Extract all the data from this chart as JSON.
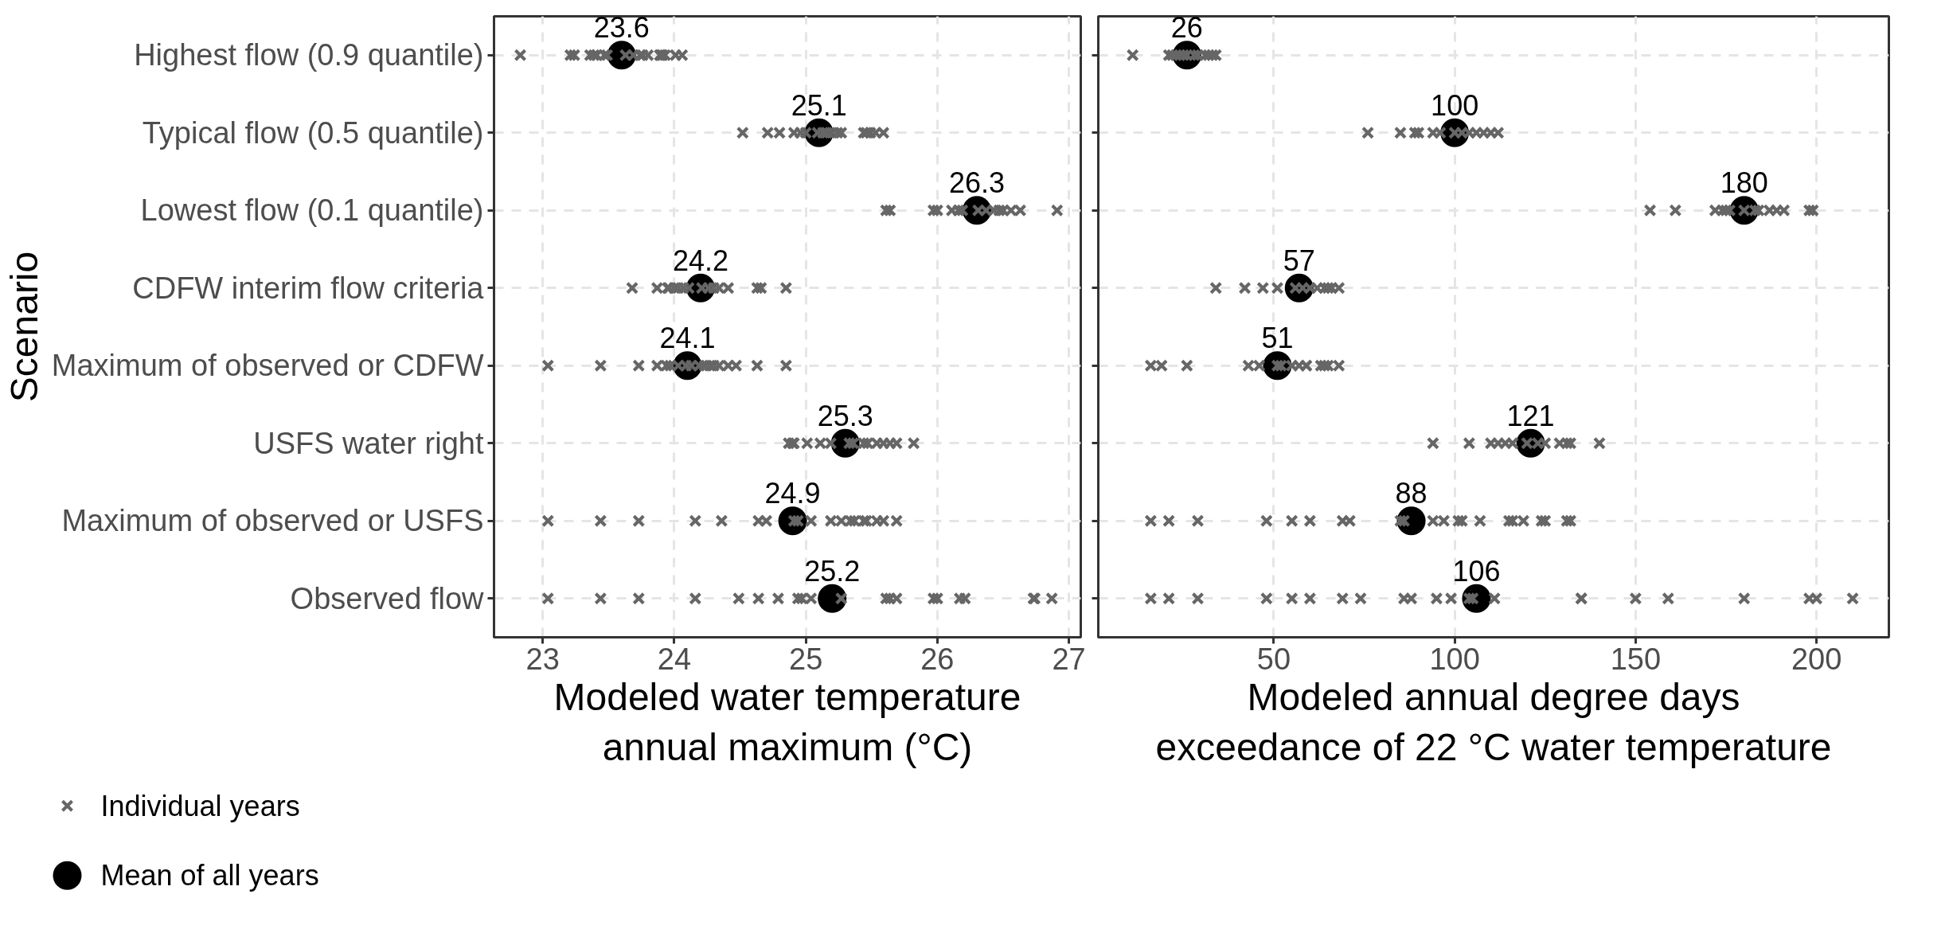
{
  "chart_data": [
    {
      "type": "scatter",
      "orientation": "horizontal",
      "xlabel": "Modeled water temperature\nannual maximum (°C)",
      "ylabel": "Scenario",
      "categories": [
        "Highest flow (0.9 quantile)",
        "Typical flow (0.5 quantile)",
        "Lowest flow (0.1 quantile)",
        "CDFW interim flow criteria",
        "Maximum of observed or CDFW",
        "USFS water right",
        "Maximum of observed or USFS",
        "Observed flow"
      ],
      "xlim": [
        22.63,
        27.09
      ],
      "xticks": [
        23,
        24,
        25,
        26,
        27
      ],
      "grid": true,
      "legend": "bottom left",
      "series": [
        {
          "name": "Mean of all years",
          "color": "#000000",
          "marker": "circle",
          "values": [
            23.6,
            25.1,
            26.3,
            24.2,
            24.1,
            25.3,
            24.9,
            25.2
          ],
          "value_labels": [
            "23.6",
            "25.1",
            "26.3",
            "24.2",
            "24.1",
            "25.3",
            "24.9",
            "25.2"
          ]
        },
        {
          "name": "Individual years",
          "color": "#666666",
          "marker": "cross",
          "x": [
            "Highest flow (0.9 quantile)",
            "Highest flow (0.9 quantile)",
            "Highest flow (0.9 quantile)",
            "Highest flow (0.9 quantile)",
            "Highest flow (0.9 quantile)",
            "Highest flow (0.9 quantile)",
            "Highest flow (0.9 quantile)",
            "Highest flow (0.9 quantile)",
            "Highest flow (0.9 quantile)",
            "Highest flow (0.9 quantile)",
            "Highest flow (0.9 quantile)",
            "Highest flow (0.9 quantile)",
            "Highest flow (0.9 quantile)",
            "Highest flow (0.9 quantile)",
            "Highest flow (0.9 quantile)",
            "Highest flow (0.9 quantile)",
            "Highest flow (0.9 quantile)",
            "Highest flow (0.9 quantile)",
            "Highest flow (0.9 quantile)",
            "Typical flow (0.5 quantile)",
            "Typical flow (0.5 quantile)",
            "Typical flow (0.5 quantile)",
            "Typical flow (0.5 quantile)",
            "Typical flow (0.5 quantile)",
            "Typical flow (0.5 quantile)",
            "Typical flow (0.5 quantile)",
            "Typical flow (0.5 quantile)",
            "Typical flow (0.5 quantile)",
            "Typical flow (0.5 quantile)",
            "Typical flow (0.5 quantile)",
            "Typical flow (0.5 quantile)",
            "Typical flow (0.5 quantile)",
            "Typical flow (0.5 quantile)",
            "Typical flow (0.5 quantile)",
            "Typical flow (0.5 quantile)",
            "Typical flow (0.5 quantile)",
            "Lowest flow (0.1 quantile)",
            "Lowest flow (0.1 quantile)",
            "Lowest flow (0.1 quantile)",
            "Lowest flow (0.1 quantile)",
            "Lowest flow (0.1 quantile)",
            "Lowest flow (0.1 quantile)",
            "Lowest flow (0.1 quantile)",
            "Lowest flow (0.1 quantile)",
            "Lowest flow (0.1 quantile)",
            "Lowest flow (0.1 quantile)",
            "Lowest flow (0.1 quantile)",
            "Lowest flow (0.1 quantile)",
            "Lowest flow (0.1 quantile)",
            "Lowest flow (0.1 quantile)",
            "Lowest flow (0.1 quantile)",
            "CDFW interim flow criteria",
            "CDFW interim flow criteria",
            "CDFW interim flow criteria",
            "CDFW interim flow criteria",
            "CDFW interim flow criteria",
            "CDFW interim flow criteria",
            "CDFW interim flow criteria",
            "CDFW interim flow criteria",
            "CDFW interim flow criteria",
            "CDFW interim flow criteria",
            "CDFW interim flow criteria",
            "CDFW interim flow criteria",
            "CDFW interim flow criteria",
            "CDFW interim flow criteria",
            "CDFW interim flow criteria",
            "CDFW interim flow criteria",
            "Maximum of observed or CDFW",
            "Maximum of observed or CDFW",
            "Maximum of observed or CDFW",
            "Maximum of observed or CDFW",
            "Maximum of observed or CDFW",
            "Maximum of observed or CDFW",
            "Maximum of observed or CDFW",
            "Maximum of observed or CDFW",
            "Maximum of observed or CDFW",
            "Maximum of observed or CDFW",
            "Maximum of observed or CDFW",
            "Maximum of observed or CDFW",
            "Maximum of observed or CDFW",
            "Maximum of observed or CDFW",
            "Maximum of observed or CDFW",
            "Maximum of observed or CDFW",
            "Maximum of observed or CDFW",
            "Maximum of observed or CDFW",
            "USFS water right",
            "USFS water right",
            "USFS water right",
            "USFS water right",
            "USFS water right",
            "USFS water right",
            "USFS water right",
            "USFS water right",
            "USFS water right",
            "USFS water right",
            "USFS water right",
            "USFS water right",
            "USFS water right",
            "USFS water right",
            "USFS water right",
            "Maximum of observed or USFS",
            "Maximum of observed or USFS",
            "Maximum of observed or USFS",
            "Maximum of observed or USFS",
            "Maximum of observed or USFS",
            "Maximum of observed or USFS",
            "Maximum of observed or USFS",
            "Maximum of observed or USFS",
            "Maximum of observed or USFS",
            "Maximum of observed or USFS",
            "Maximum of observed or USFS",
            "Maximum of observed or USFS",
            "Maximum of observed or USFS",
            "Maximum of observed or USFS",
            "Maximum of observed or USFS",
            "Maximum of observed or USFS",
            "Maximum of observed or USFS",
            "Maximum of observed or USFS",
            "Maximum of observed or USFS",
            "Observed flow",
            "Observed flow",
            "Observed flow",
            "Observed flow",
            "Observed flow",
            "Observed flow",
            "Observed flow",
            "Observed flow",
            "Observed flow",
            "Observed flow",
            "Observed flow",
            "Observed flow",
            "Observed flow",
            "Observed flow",
            "Observed flow",
            "Observed flow",
            "Observed flow",
            "Observed flow",
            "Observed flow",
            "Observed flow",
            "Observed flow"
          ],
          "values": [
            22.83,
            23.21,
            23.24,
            23.36,
            23.39,
            23.41,
            23.47,
            23.49,
            23.63,
            23.69,
            23.74,
            23.76,
            23.8,
            23.89,
            23.9,
            23.91,
            23.93,
            24.01,
            24.06,
            24.52,
            24.71,
            24.8,
            24.91,
            24.96,
            25.0,
            25.09,
            25.13,
            25.16,
            25.2,
            25.24,
            25.27,
            25.44,
            25.46,
            25.49,
            25.53,
            25.59,
            25.61,
            25.64,
            25.97,
            26.0,
            26.11,
            26.16,
            26.19,
            26.31,
            26.37,
            26.43,
            26.47,
            26.5,
            26.56,
            26.63,
            26.91,
            23.68,
            23.87,
            23.95,
            23.96,
            24.0,
            24.03,
            24.07,
            24.11,
            24.21,
            24.26,
            24.3,
            24.34,
            24.41,
            24.63,
            24.66,
            24.85,
            23.04,
            23.44,
            23.73,
            23.87,
            23.94,
            23.97,
            24.03,
            24.09,
            24.13,
            24.19,
            24.23,
            24.27,
            24.3,
            24.34,
            24.41,
            24.47,
            24.63,
            24.85,
            24.87,
            24.9,
            24.91,
            25.01,
            25.11,
            25.19,
            25.33,
            25.36,
            25.44,
            25.47,
            25.54,
            25.59,
            25.64,
            25.69,
            25.82,
            23.04,
            23.44,
            23.73,
            24.16,
            24.36,
            24.64,
            24.7,
            24.91,
            24.94,
            25.04,
            25.19,
            25.27,
            25.34,
            25.37,
            25.44,
            25.46,
            25.54,
            25.59,
            25.69,
            23.04,
            23.44,
            23.73,
            24.16,
            24.49,
            24.64,
            24.79,
            24.94,
            24.97,
            25.04,
            25.27,
            25.61,
            25.64,
            25.69,
            25.97,
            26.0,
            26.17,
            26.21,
            26.73,
            26.74,
            26.87
          ]
        }
      ]
    },
    {
      "type": "scatter",
      "orientation": "horizontal",
      "xlabel": "Modeled annual degree days\nexceedance of 22 °C water temperature",
      "categories": [
        "Highest flow (0.9 quantile)",
        "Typical flow (0.5 quantile)",
        "Lowest flow (0.1 quantile)",
        "CDFW interim flow criteria",
        "Maximum of observed or CDFW",
        "USFS water right",
        "Maximum of observed or USFS",
        "Observed flow"
      ],
      "xlim": [
        1.5,
        220
      ],
      "xticks": [
        50,
        100,
        150,
        200
      ],
      "grid": true,
      "tick_labels": "x",
      "series": [
        {
          "color": "#000000",
          "marker": "circle",
          "values": [
            26,
            100,
            180,
            57,
            51,
            121,
            88,
            106
          ],
          "value_labels": [
            "26",
            "100",
            "180",
            "57",
            "51",
            "121",
            "88",
            "106"
          ]
        },
        {
          "color": "#666666",
          "marker": "cross",
          "x": [
            "Highest flow (0.9 quantile)",
            "Highest flow (0.9 quantile)",
            "Highest flow (0.9 quantile)",
            "Highest flow (0.9 quantile)",
            "Highest flow (0.9 quantile)",
            "Highest flow (0.9 quantile)",
            "Highest flow (0.9 quantile)",
            "Highest flow (0.9 quantile)",
            "Highest flow (0.9 quantile)",
            "Highest flow (0.9 quantile)",
            "Highest flow (0.9 quantile)",
            "Highest flow (0.9 quantile)",
            "Highest flow (0.9 quantile)",
            "Typical flow (0.5 quantile)",
            "Typical flow (0.5 quantile)",
            "Typical flow (0.5 quantile)",
            "Typical flow (0.5 quantile)",
            "Typical flow (0.5 quantile)",
            "Typical flow (0.5 quantile)",
            "Typical flow (0.5 quantile)",
            "Typical flow (0.5 quantile)",
            "Typical flow (0.5 quantile)",
            "Typical flow (0.5 quantile)",
            "Typical flow (0.5 quantile)",
            "Typical flow (0.5 quantile)",
            "Typical flow (0.5 quantile)",
            "Lowest flow (0.1 quantile)",
            "Lowest flow (0.1 quantile)",
            "Lowest flow (0.1 quantile)",
            "Lowest flow (0.1 quantile)",
            "Lowest flow (0.1 quantile)",
            "Lowest flow (0.1 quantile)",
            "Lowest flow (0.1 quantile)",
            "Lowest flow (0.1 quantile)",
            "Lowest flow (0.1 quantile)",
            "Lowest flow (0.1 quantile)",
            "Lowest flow (0.1 quantile)",
            "Lowest flow (0.1 quantile)",
            "Lowest flow (0.1 quantile)",
            "Lowest flow (0.1 quantile)",
            "CDFW interim flow criteria",
            "CDFW interim flow criteria",
            "CDFW interim flow criteria",
            "CDFW interim flow criteria",
            "CDFW interim flow criteria",
            "CDFW interim flow criteria",
            "CDFW interim flow criteria",
            "CDFW interim flow criteria",
            "CDFW interim flow criteria",
            "CDFW interim flow criteria",
            "CDFW interim flow criteria",
            "CDFW interim flow criteria",
            "Maximum of observed or CDFW",
            "Maximum of observed or CDFW",
            "Maximum of observed or CDFW",
            "Maximum of observed or CDFW",
            "Maximum of observed or CDFW",
            "Maximum of observed or CDFW",
            "Maximum of observed or CDFW",
            "Maximum of observed or CDFW",
            "Maximum of observed or CDFW",
            "Maximum of observed or CDFW",
            "Maximum of observed or CDFW",
            "Maximum of observed or CDFW",
            "Maximum of observed or CDFW",
            "Maximum of observed or CDFW",
            "Maximum of observed or CDFW",
            "USFS water right",
            "USFS water right",
            "USFS water right",
            "USFS water right",
            "USFS water right",
            "USFS water right",
            "USFS water right",
            "USFS water right",
            "USFS water right",
            "USFS water right",
            "USFS water right",
            "USFS water right",
            "USFS water right",
            "Maximum of observed or USFS",
            "Maximum of observed or USFS",
            "Maximum of observed or USFS",
            "Maximum of observed or USFS",
            "Maximum of observed or USFS",
            "Maximum of observed or USFS",
            "Maximum of observed or USFS",
            "Maximum of observed or USFS",
            "Maximum of observed or USFS",
            "Maximum of observed or USFS",
            "Maximum of observed or USFS",
            "Maximum of observed or USFS",
            "Maximum of observed or USFS",
            "Maximum of observed or USFS",
            "Maximum of observed or USFS",
            "Maximum of observed or USFS",
            "Maximum of observed or USFS",
            "Maximum of observed or USFS",
            "Maximum of observed or USFS",
            "Maximum of observed or USFS",
            "Maximum of observed or USFS",
            "Maximum of observed or USFS",
            "Observed flow",
            "Observed flow",
            "Observed flow",
            "Observed flow",
            "Observed flow",
            "Observed flow",
            "Observed flow",
            "Observed flow",
            "Observed flow",
            "Observed flow",
            "Observed flow",
            "Observed flow",
            "Observed flow",
            "Observed flow",
            "Observed flow",
            "Observed flow",
            "Observed flow",
            "Observed flow",
            "Observed flow",
            "Observed flow",
            "Observed flow",
            "Observed flow",
            "Observed flow"
          ],
          "values": [
            11,
            21,
            22,
            23,
            24,
            25,
            26,
            28,
            29,
            31,
            32,
            33,
            34,
            76,
            85,
            89,
            90,
            94,
            96,
            100,
            102,
            104,
            106,
            108,
            110,
            112,
            154,
            161,
            172,
            174,
            175,
            176,
            180,
            183,
            184,
            187,
            189,
            191,
            198,
            199,
            34,
            42,
            47,
            51,
            56,
            58,
            60,
            62,
            64,
            65,
            66,
            68,
            16,
            19,
            26,
            43,
            46,
            51,
            52,
            55,
            57,
            59,
            59,
            63,
            64,
            65,
            68,
            94,
            104,
            110,
            112,
            114,
            116,
            120,
            123,
            125,
            129,
            131,
            132,
            140,
            16,
            21,
            29,
            48,
            55,
            60,
            69,
            71,
            85,
            86,
            94,
            97,
            101,
            102,
            107,
            115,
            116,
            119,
            124,
            125,
            131,
            132,
            16,
            21,
            29,
            48,
            55,
            60,
            69,
            74,
            86,
            88,
            95,
            99,
            104,
            105,
            111,
            135,
            135,
            150,
            159,
            180,
            198,
            200,
            210
          ]
        }
      ]
    }
  ]
}
